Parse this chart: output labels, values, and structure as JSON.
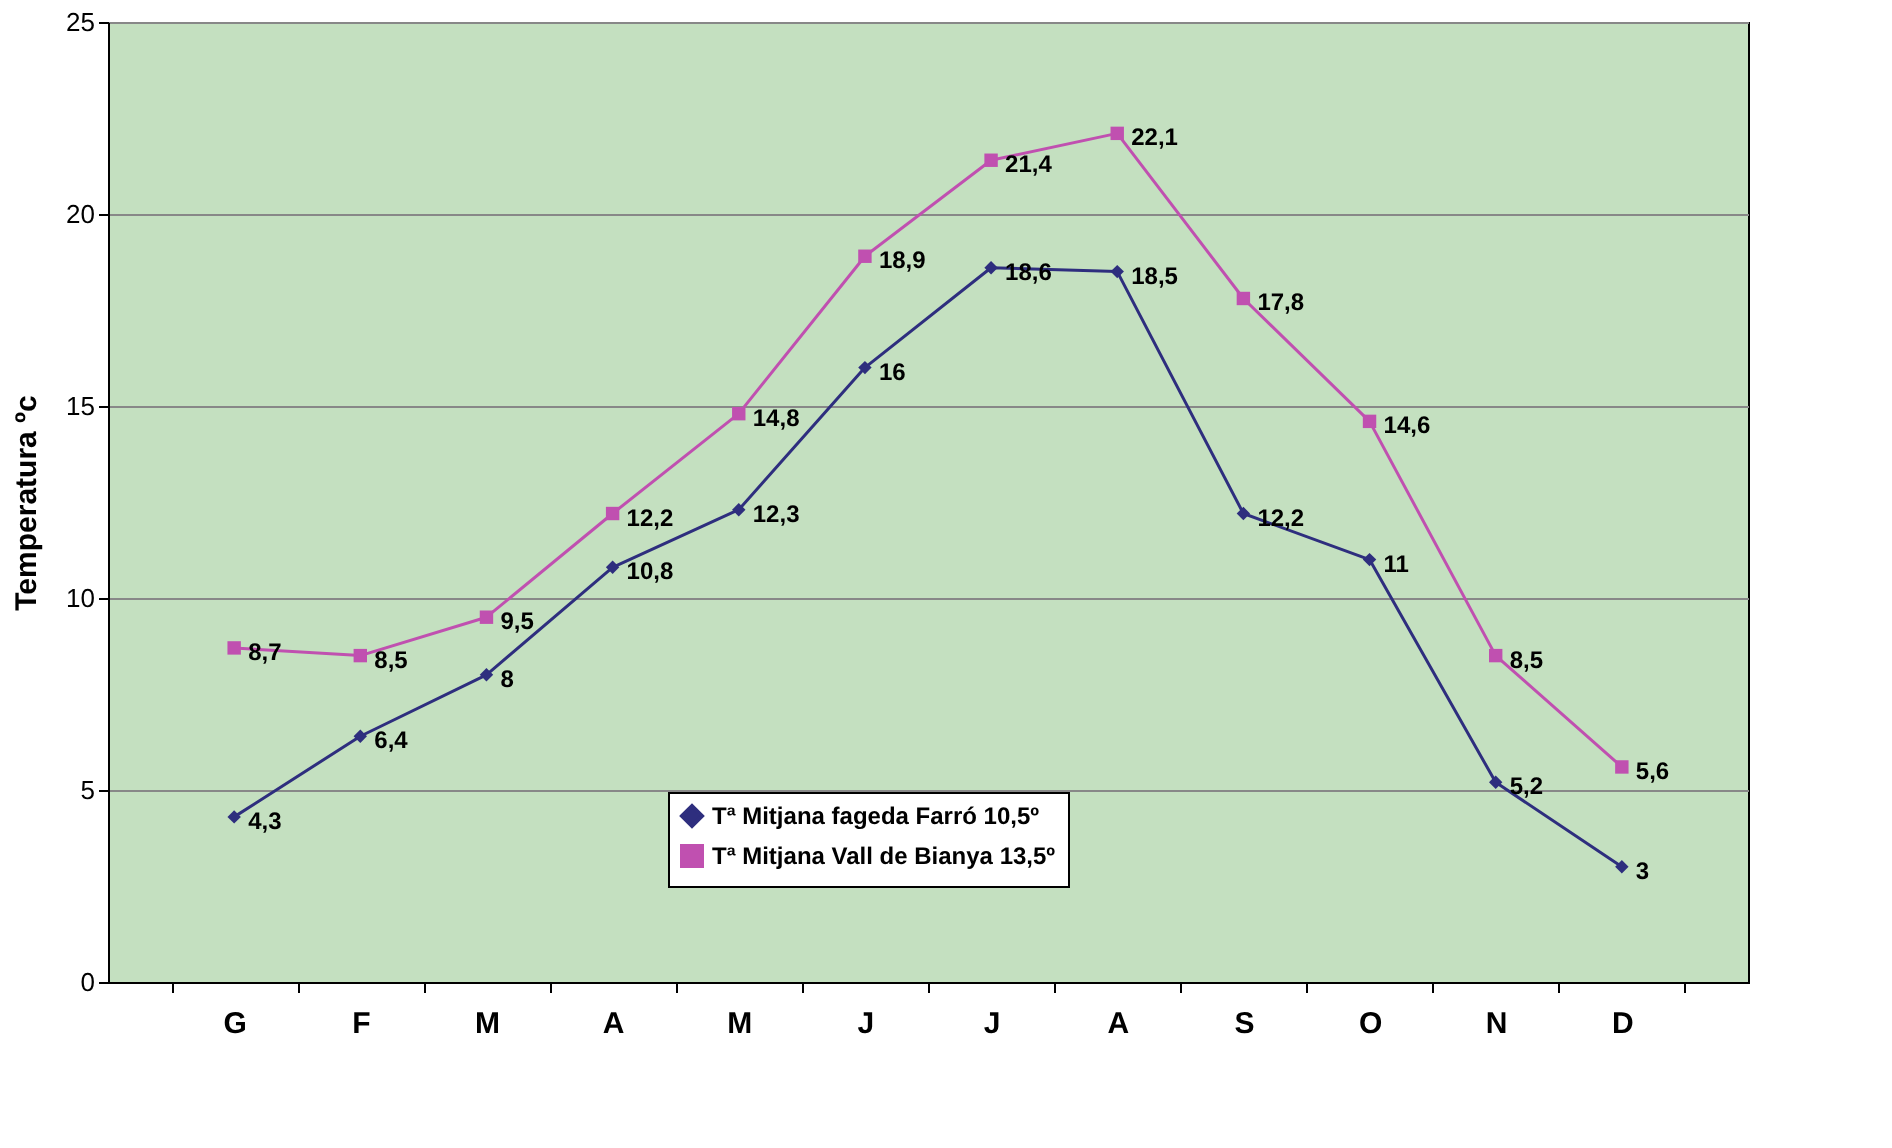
{
  "chart_data": {
    "type": "line",
    "ylabel": "Temperatura ºc",
    "categories": [
      "G",
      "F",
      "M",
      "A",
      "M",
      "J",
      "J",
      "A",
      "S",
      "O",
      "N",
      "D"
    ],
    "series": [
      {
        "name": "Tª Mitjana fageda Farró 10,5º",
        "color": "#2e2e7e",
        "marker": "diamond",
        "values": [
          4.3,
          6.4,
          8,
          10.8,
          12.3,
          16,
          18.6,
          18.5,
          12.2,
          11,
          5.2,
          3
        ],
        "value_labels": [
          "4,3",
          "6,4",
          "8",
          "10,8",
          "12,3",
          "16",
          "18,6",
          "18,5",
          "12,2",
          "11",
          "5,2",
          "3"
        ]
      },
      {
        "name": "Tª Mitjana Vall de Bianya 13,5º",
        "color": "#c050b0",
        "marker": "square",
        "values": [
          8.7,
          8.5,
          9.5,
          12.2,
          14.8,
          18.9,
          21.4,
          22.1,
          17.8,
          14.6,
          8.5,
          5.6
        ],
        "value_labels": [
          "8,7",
          "8,5",
          "9,5",
          "12,2",
          "14,8",
          "18,9",
          "21,4",
          "22,1",
          "17,8",
          "14,6",
          "8,5",
          "5,6"
        ]
      }
    ],
    "ylim": [
      0,
      25
    ],
    "yticks": [
      0,
      5,
      10,
      15,
      20,
      25
    ],
    "grid": "y",
    "legend": "bottom",
    "line_style": "solid"
  }
}
